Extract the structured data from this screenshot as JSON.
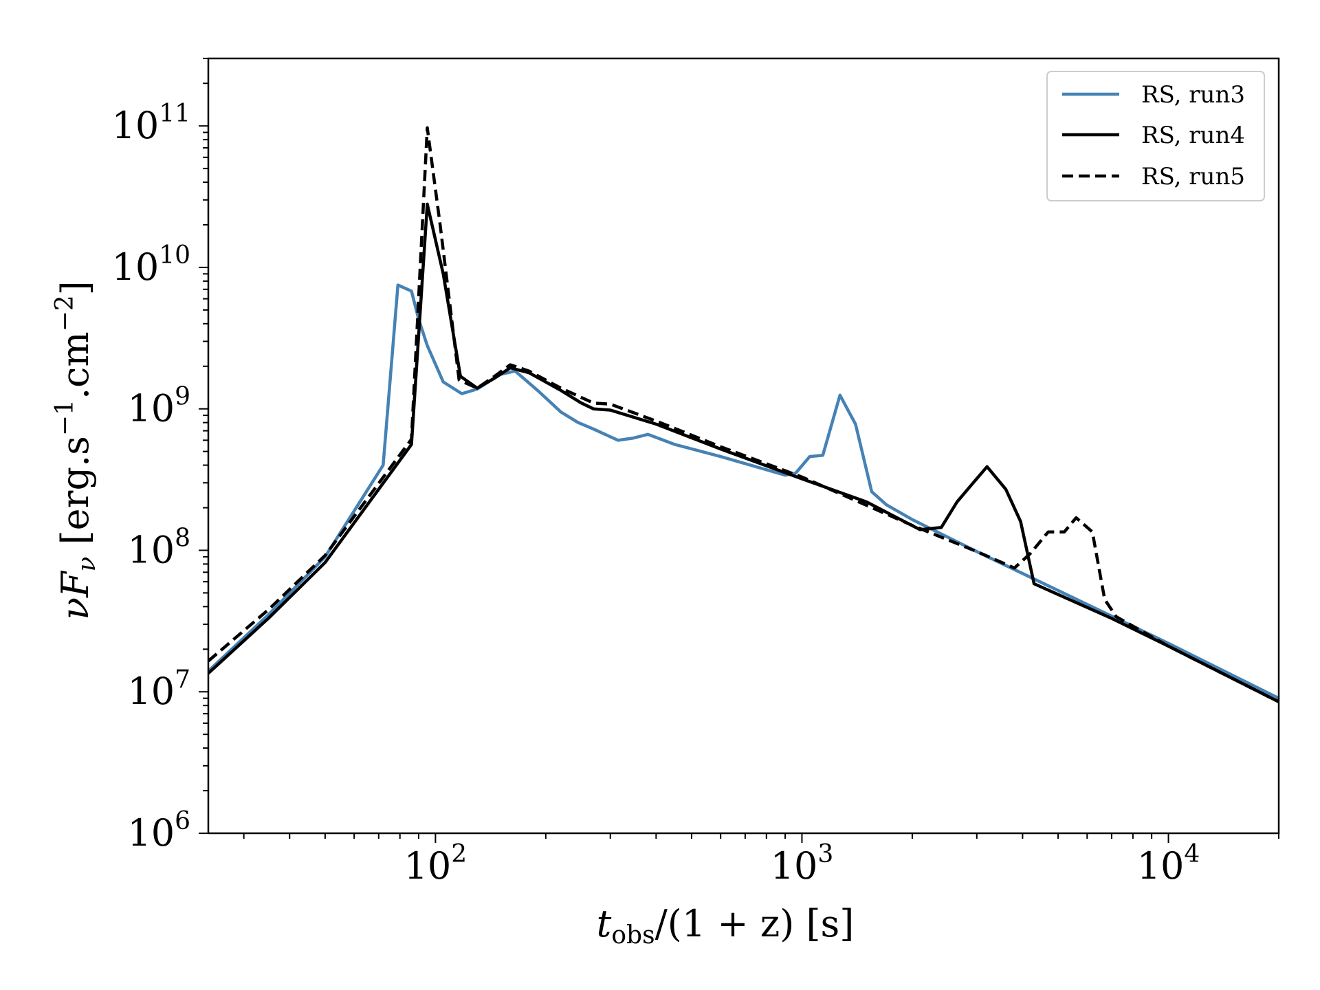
{
  "chart_data": {
    "type": "line",
    "title": "",
    "xlabel": {
      "main": "t",
      "sub": "obs",
      "rest": "/(1 + z) [s]"
    },
    "ylabel": {
      "pre": "νF",
      "sub": "ν",
      "bracket_open": " [erg.s",
      "exp1": "−1",
      "mid": ".cm",
      "exp2": "−2",
      "bracket_close": "]"
    },
    "xscale": "log",
    "yscale": "log",
    "xlim": [
      24,
      20000
    ],
    "ylim": [
      1000000,
      300000000000
    ],
    "xticks": [
      {
        "value": 100,
        "base": "10",
        "exp": "2"
      },
      {
        "value": 1000,
        "base": "10",
        "exp": "3"
      },
      {
        "value": 10000,
        "base": "10",
        "exp": "4"
      }
    ],
    "yticks": [
      {
        "value": 1000000,
        "base": "10",
        "exp": "6"
      },
      {
        "value": 10000000,
        "base": "10",
        "exp": "7"
      },
      {
        "value": 100000000,
        "base": "10",
        "exp": "8"
      },
      {
        "value": 1000000000,
        "base": "10",
        "exp": "9"
      },
      {
        "value": 10000000000,
        "base": "10",
        "exp": "10"
      },
      {
        "value": 100000000000,
        "base": "10",
        "exp": "11"
      }
    ],
    "grid": false,
    "legend_position": "top-right",
    "series": [
      {
        "name": "RS, run3",
        "color": "#4682b4",
        "dash": "solid",
        "points": [
          [
            24,
            14000000
          ],
          [
            35,
            35000000
          ],
          [
            50,
            90000000
          ],
          [
            72,
            400000000
          ],
          [
            79,
            7500000000
          ],
          [
            86,
            6800000000
          ],
          [
            90,
            4300000000
          ],
          [
            95,
            2800000000
          ],
          [
            105,
            1550000000
          ],
          [
            118,
            1280000000
          ],
          [
            130,
            1380000000
          ],
          [
            150,
            1750000000
          ],
          [
            165,
            1850000000
          ],
          [
            190,
            1350000000
          ],
          [
            220,
            950000000
          ],
          [
            245,
            800000000
          ],
          [
            270,
            720000000
          ],
          [
            315,
            600000000
          ],
          [
            345,
            620000000
          ],
          [
            380,
            660000000
          ],
          [
            450,
            560000000
          ],
          [
            600,
            460000000
          ],
          [
            900,
            340000000
          ],
          [
            960,
            350000000
          ],
          [
            1050,
            460000000
          ],
          [
            1140,
            470000000
          ],
          [
            1270,
            1250000000
          ],
          [
            1400,
            780000000
          ],
          [
            1550,
            260000000
          ],
          [
            1700,
            210000000
          ],
          [
            2000,
            165000000
          ],
          [
            3000,
            98000000
          ],
          [
            5000,
            52000000
          ],
          [
            10000,
            22000000
          ],
          [
            20000,
            9000000
          ]
        ]
      },
      {
        "name": "RS, run4",
        "color": "#000000",
        "dash": "solid",
        "points": [
          [
            24,
            13500000
          ],
          [
            35,
            33000000
          ],
          [
            50,
            82000000
          ],
          [
            86,
            560000000
          ],
          [
            95,
            28000000000
          ],
          [
            105,
            9000000000
          ],
          [
            117,
            1700000000
          ],
          [
            130,
            1400000000
          ],
          [
            145,
            1650000000
          ],
          [
            160,
            1950000000
          ],
          [
            180,
            1800000000
          ],
          [
            220,
            1350000000
          ],
          [
            250,
            1100000000
          ],
          [
            270,
            1000000000
          ],
          [
            300,
            980000000
          ],
          [
            400,
            780000000
          ],
          [
            600,
            520000000
          ],
          [
            1000,
            320000000
          ],
          [
            1500,
            220000000
          ],
          [
            2100,
            140000000
          ],
          [
            2400,
            145000000
          ],
          [
            2650,
            220000000
          ],
          [
            2900,
            290000000
          ],
          [
            3200,
            390000000
          ],
          [
            3600,
            270000000
          ],
          [
            3950,
            160000000
          ],
          [
            4300,
            58000000
          ],
          [
            7000,
            33000000
          ],
          [
            10000,
            21000000
          ],
          [
            20000,
            8500000
          ]
        ]
      },
      {
        "name": "RS, run5",
        "color": "#000000",
        "dash": "dashed",
        "points": [
          [
            24,
            16500000
          ],
          [
            35,
            38000000
          ],
          [
            50,
            92000000
          ],
          [
            86,
            610000000
          ],
          [
            95,
            97000000000
          ],
          [
            103,
            20000000000
          ],
          [
            116,
            1600000000
          ],
          [
            130,
            1400000000
          ],
          [
            145,
            1700000000
          ],
          [
            160,
            2050000000
          ],
          [
            180,
            1850000000
          ],
          [
            220,
            1400000000
          ],
          [
            270,
            1100000000
          ],
          [
            300,
            1080000000
          ],
          [
            400,
            820000000
          ],
          [
            600,
            540000000
          ],
          [
            1000,
            330000000
          ],
          [
            2000,
            150000000
          ],
          [
            3000,
            98000000
          ],
          [
            3800,
            75000000
          ],
          [
            4200,
            95000000
          ],
          [
            4700,
            135000000
          ],
          [
            5200,
            135000000
          ],
          [
            5600,
            170000000
          ],
          [
            6200,
            135000000
          ],
          [
            6700,
            45000000
          ],
          [
            7200,
            34000000
          ],
          [
            10000,
            21000000
          ],
          [
            20000,
            8500000
          ]
        ]
      }
    ]
  }
}
